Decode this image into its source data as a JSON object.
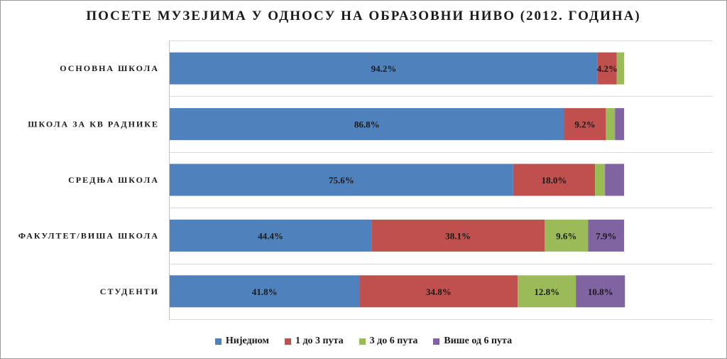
{
  "chart_data": {
    "type": "bar",
    "orientation": "horizontal",
    "stacked": true,
    "title": "ПОСЕТЕ МУЗЕЈИМА У ОДНОСУ НА ОБРАЗОВНИ НИВО (2012. ГОДИНА)",
    "categories": [
      "ОСНОВНА ШКОЛА",
      "ШКОЛА ЗА КВ РАДНИКЕ",
      "СРЕДЊА ШКОЛА",
      "ФАКУЛТЕТ/ВИША ШКОЛА",
      "СТУДЕНТИ"
    ],
    "series": [
      {
        "name": "Ниједном",
        "color": "#4f81bd",
        "values": [
          94.2,
          86.8,
          75.6,
          44.4,
          41.8
        ],
        "labels": [
          "94.2%",
          "86.8%",
          "75.6%",
          "44.4%",
          "41.8%"
        ]
      },
      {
        "name": "1 до 3 пута",
        "color": "#c0504d",
        "values": [
          4.2,
          9.2,
          18.0,
          38.1,
          34.8
        ],
        "labels": [
          "4.2%",
          "9.2%",
          "18.0%",
          "38.1%",
          "34.8%"
        ]
      },
      {
        "name": "3 до 6 пута",
        "color": "#9bbb59",
        "values": [
          1.6,
          2.0,
          2.2,
          9.6,
          12.8
        ],
        "labels": [
          "",
          "",
          "",
          "9.6%",
          "12.8%"
        ]
      },
      {
        "name": "Више од 6 пута",
        "color": "#8064a2",
        "values": [
          0,
          2.0,
          4.2,
          7.9,
          10.8
        ],
        "labels": [
          "",
          "",
          "",
          "7.9%",
          "10.8%"
        ]
      }
    ],
    "xlim": [
      0,
      100
    ],
    "grid": true,
    "legend_position": "bottom"
  }
}
